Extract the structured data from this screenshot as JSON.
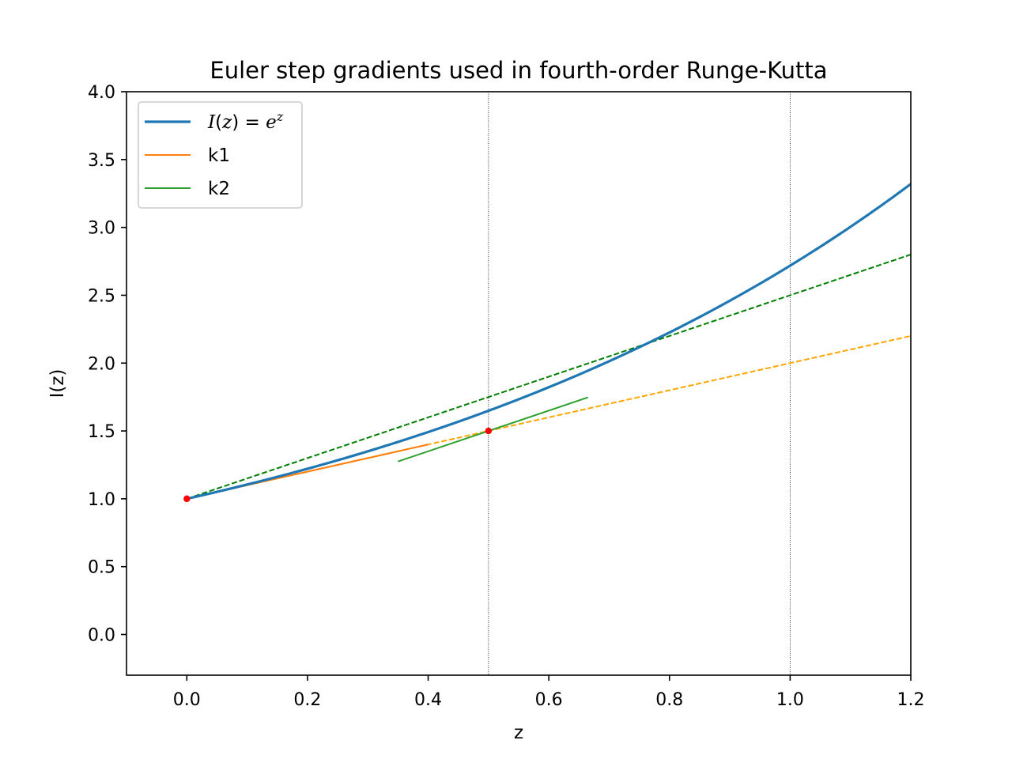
{
  "chart_data": {
    "type": "line",
    "title": "Euler step gradients used in fourth-order Runge-Kutta",
    "xlabel": "z",
    "ylabel": "I(z)",
    "xlim": [
      -0.1,
      1.2
    ],
    "ylim": [
      -0.3,
      4.0
    ],
    "xticks": [
      0.0,
      0.2,
      0.4,
      0.6,
      0.8,
      1.0,
      1.2
    ],
    "xtick_labels": [
      "0.0",
      "0.2",
      "0.4",
      "0.6",
      "0.8",
      "1.0",
      "1.2"
    ],
    "yticks": [
      0.0,
      0.5,
      1.0,
      1.5,
      2.0,
      2.5,
      3.0,
      3.5,
      4.0
    ],
    "ytick_labels": [
      "0.0",
      "0.5",
      "1.0",
      "1.5",
      "2.0",
      "2.5",
      "3.0",
      "3.5",
      "4.0"
    ],
    "grid": false,
    "legend_position": "top-left",
    "vertical_lines": [
      0.5,
      1.0
    ],
    "legend": [
      {
        "label": "I(z) = e^z",
        "color": "#1f77b4"
      },
      {
        "label": "k1",
        "color": "#ff7f0e"
      },
      {
        "label": "k2",
        "color": "#2ca02c"
      }
    ],
    "series": [
      {
        "name": "I(z) = e^z",
        "color": "#1f77b4",
        "style": "solid",
        "function": "exp",
        "x_range": [
          0.0,
          1.2
        ]
      },
      {
        "name": "k1",
        "color": "#ff7f0e",
        "style": "solid",
        "x": [
          0.0,
          0.4
        ],
        "y": [
          1.0,
          1.4
        ]
      },
      {
        "name": "k2",
        "color": "#2ca02c",
        "style": "solid",
        "x": [
          0.35,
          0.665
        ],
        "y": [
          1.275,
          1.7475
        ]
      },
      {
        "color": "#ffa500",
        "style": "dashed",
        "x": [
          0.0,
          1.2
        ],
        "y": [
          1.0,
          2.2
        ]
      },
      {
        "color": "#008000",
        "style": "dashed",
        "x": [
          0.0,
          1.2
        ],
        "y": [
          1.0,
          2.8
        ]
      }
    ],
    "points": [
      {
        "x": 0.0,
        "y": 1.0,
        "color": "#ff0000"
      },
      {
        "x": 0.5,
        "y": 1.5,
        "color": "#ff0000"
      }
    ]
  }
}
